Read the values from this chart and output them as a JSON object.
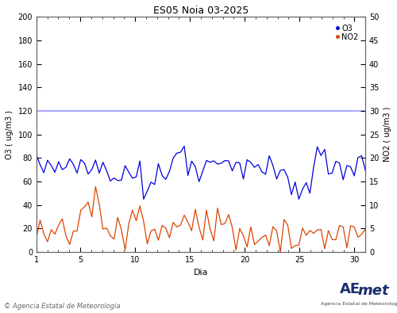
{
  "title": "ES05 Noia 03-2025",
  "xlabel": "Dia",
  "ylabel_left": "O3 ( ug/m3 )",
  "ylabel_right": "NO2 ( ug/m3 )",
  "ylim_left": [
    0,
    200
  ],
  "ylim_right": [
    0,
    50
  ],
  "xlim": [
    1,
    31
  ],
  "yticks_left": [
    0,
    20,
    40,
    60,
    80,
    100,
    120,
    140,
    160,
    180,
    200
  ],
  "yticks_right": [
    0,
    5,
    10,
    15,
    20,
    25,
    30,
    35,
    40,
    45,
    50
  ],
  "xticks": [
    1,
    5,
    10,
    15,
    20,
    25,
    30
  ],
  "o3_color": "#0000dd",
  "no2_color": "#dd4400",
  "threshold_color": "#aaaaff",
  "threshold_value": 120,
  "background_color": "#ffffff",
  "plot_bg_color": "#ffffff",
  "copyright_text": "© Agencia Estatal de Meteorología",
  "legend_labels": [
    "O3",
    "NO2"
  ],
  "figwidth": 5.0,
  "figheight": 3.95,
  "dpi": 100
}
